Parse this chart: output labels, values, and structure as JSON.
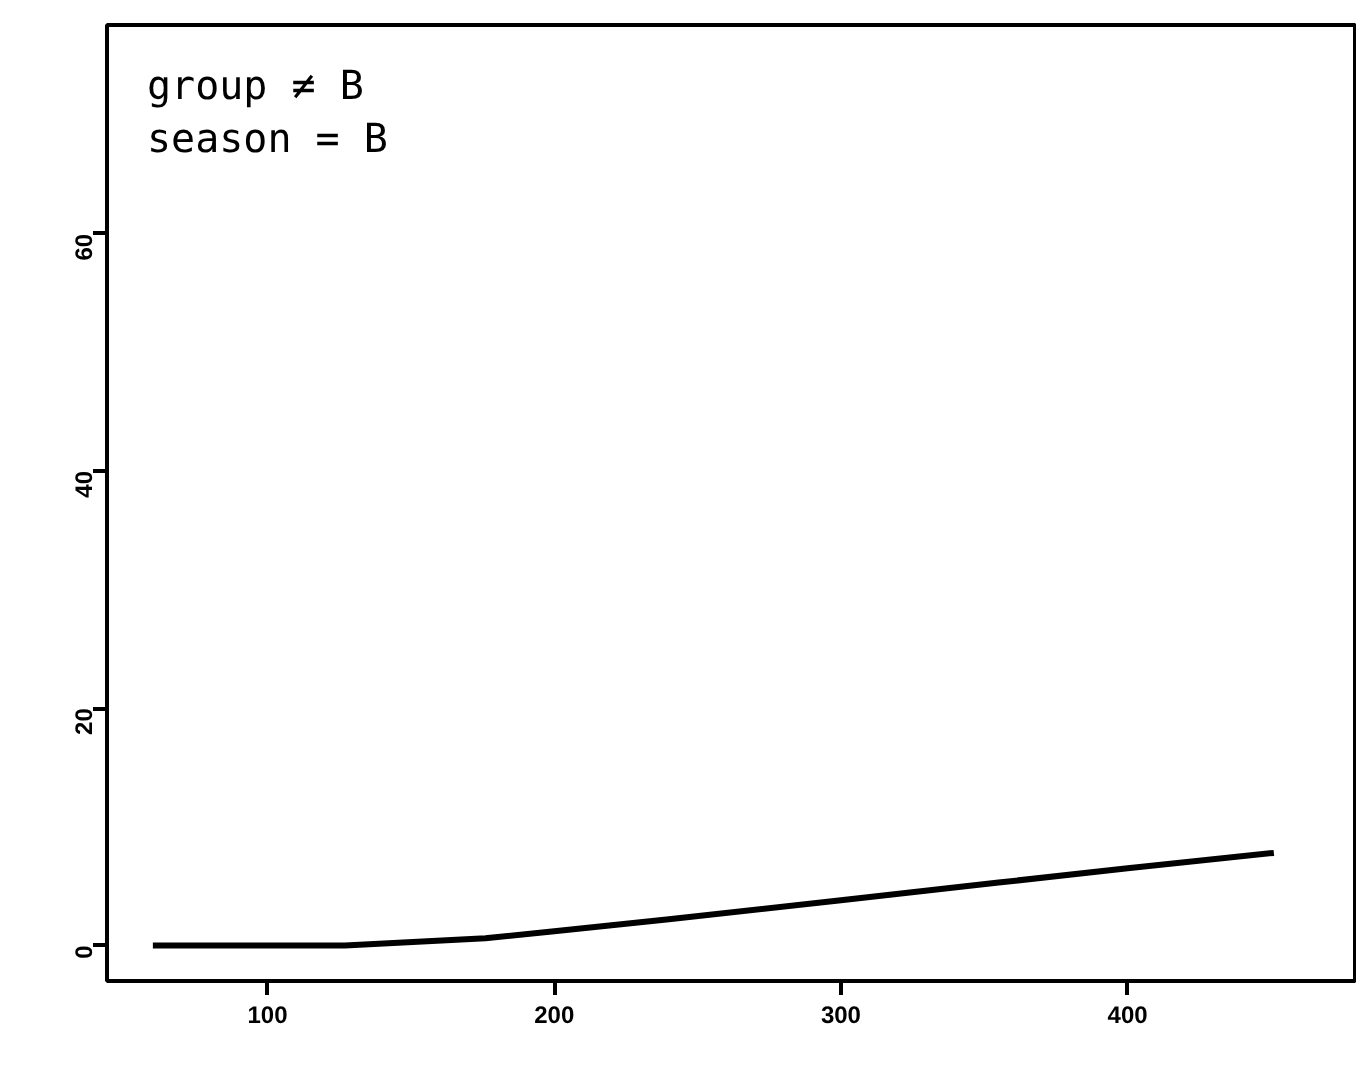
{
  "chart_data": {
    "type": "line",
    "x": [
      60,
      127,
      176,
      200,
      240,
      300,
      355,
      400,
      451
    ],
    "series": [
      {
        "color": "#000000",
        "values": [
          0,
          0,
          0.6,
          1.2,
          2.2,
          3.8,
          5.3,
          6.5,
          7.8
        ]
      }
    ],
    "xlim": [
      44,
      480
    ],
    "xticks": [
      100,
      200,
      300,
      400
    ],
    "ylim": [
      -3,
      77.6
    ],
    "yticks": [
      0,
      20,
      40,
      60
    ],
    "annotations": [
      "group ≠ B\nseason = B"
    ],
    "grid": false,
    "marker": "none",
    "line_style": "solid"
  }
}
